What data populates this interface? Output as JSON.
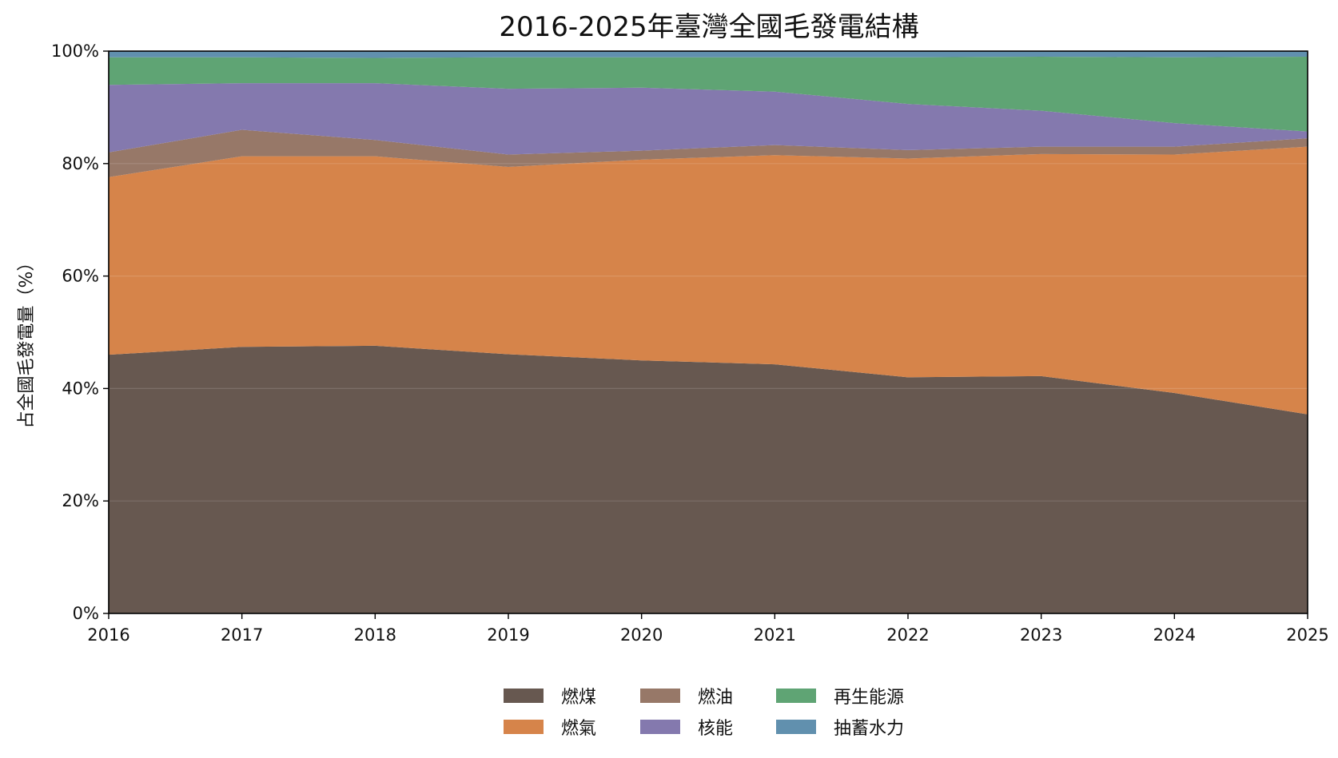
{
  "chart_data": {
    "type": "area",
    "stacked": true,
    "title": "2016-2025年臺灣全國毛發電結構",
    "xlabel": "",
    "ylabel": "占全國毛發電量（%）",
    "x": [
      "2016",
      "2017",
      "2018",
      "2019",
      "2020",
      "2021",
      "2022",
      "2023",
      "2024",
      "2025"
    ],
    "xlim": [
      2016,
      2025
    ],
    "ylim": [
      0,
      100
    ],
    "yticks": [
      "0%",
      "20%",
      "40%",
      "60%",
      "80%",
      "100%"
    ],
    "grid": true,
    "legend_position": "bottom-center",
    "series": [
      {
        "name": "燃煤",
        "color": "#675850",
        "values": [
          46.0,
          47.4,
          47.6,
          46.1,
          45.0,
          44.3,
          42.0,
          42.2,
          39.2,
          35.4
        ]
      },
      {
        "name": "燃氣",
        "color": "#d6844a",
        "values": [
          31.6,
          33.9,
          33.7,
          33.3,
          35.7,
          37.2,
          38.9,
          39.5,
          42.4,
          47.6
        ]
      },
      {
        "name": "燃油",
        "color": "#977868",
        "values": [
          4.4,
          4.7,
          2.9,
          2.2,
          1.6,
          1.8,
          1.5,
          1.3,
          1.4,
          1.5
        ]
      },
      {
        "name": "核能",
        "color": "#8479ae",
        "values": [
          12.0,
          8.3,
          10.1,
          11.7,
          11.2,
          9.5,
          8.2,
          6.4,
          4.2,
          1.2
        ]
      },
      {
        "name": "再生能源",
        "color": "#5fa474",
        "values": [
          4.9,
          4.6,
          4.5,
          5.6,
          5.4,
          6.1,
          8.3,
          9.6,
          11.7,
          13.3
        ]
      },
      {
        "name": "抽蓄水力",
        "color": "#6190ae",
        "values": [
          1.1,
          1.1,
          1.2,
          1.1,
          1.1,
          1.1,
          1.1,
          1.0,
          1.1,
          1.0
        ]
      }
    ]
  }
}
